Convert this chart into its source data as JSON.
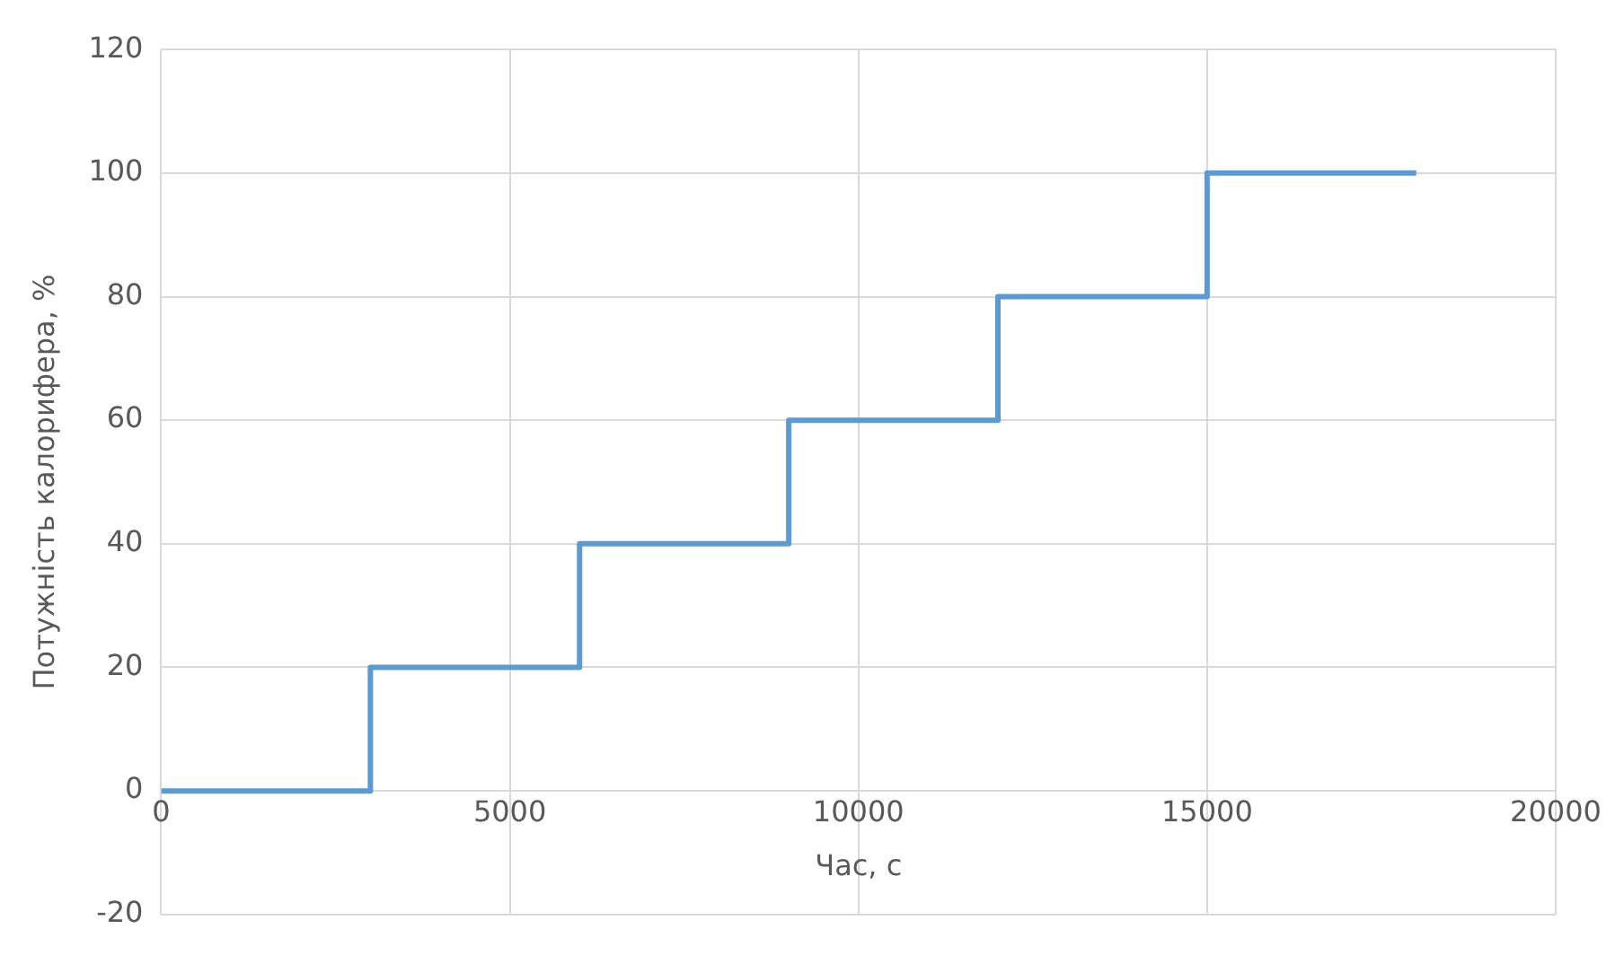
{
  "chart_data": {
    "type": "step",
    "xlabel": "Час, с",
    "ylabel": "Потужність калорифера, %",
    "x": [
      0,
      3000,
      6000,
      9000,
      12000,
      15000,
      18000
    ],
    "series": [
      {
        "color": "#5b9bd5",
        "values": [
          0,
          20,
          40,
          60,
          80,
          100,
          100
        ]
      }
    ],
    "xlim": [
      0,
      20000
    ],
    "xticks": [
      0,
      5000,
      10000,
      15000,
      20000
    ],
    "ylim": [
      -20,
      120
    ],
    "yticks": [
      -20,
      0,
      20,
      40,
      60,
      80,
      100,
      120
    ],
    "grid": true,
    "legend": false,
    "marker": "none"
  }
}
